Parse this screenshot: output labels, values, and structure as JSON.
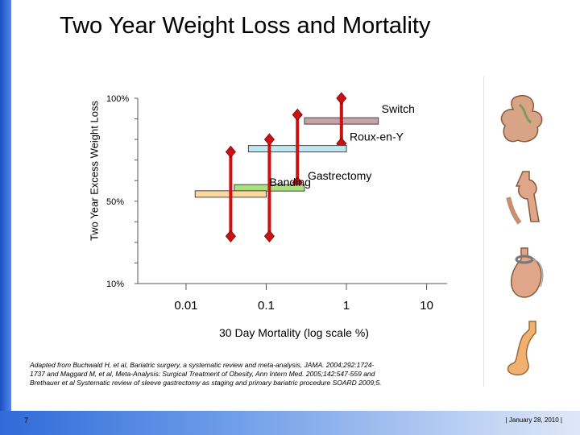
{
  "slide": {
    "title": "Two Year Weight Loss and Mortality",
    "number": "7",
    "footer": "| January 28, 2010 |",
    "citation": "Adapted from Buchwald H, et al, Bariatric surgery, a systematic review and meta-analysis, JAMA. 2004;292:1724-1737 and Maggard M, et al, Meta-Analysis: Surgical Treatment of Obesity, Ann Intern Med. 2005;142:547-559 and Brethauer et al Systematic review of sleeve gastrectomy as staging and primary bariatric procedure SOARD 2009;5."
  },
  "colors": {
    "left_bar": "#1c4fc4",
    "diamond": "#cc1111",
    "switch": "#c9a1aa",
    "roux": "#bfe9f2",
    "gastrectomy": "#a8e27a",
    "banding": "#ffd79a"
  },
  "chart_data": {
    "type": "range",
    "title": "",
    "xlabel": "30 Day Mortality (log scale %)",
    "ylabel": "Two Year Excess Weight Loss",
    "x_scale": "log",
    "xlim": [
      0.0025,
      18
    ],
    "ylim": [
      10,
      100
    ],
    "x_ticks": [
      "0.01",
      "0.1",
      "1",
      "10"
    ],
    "y_ticks": [
      "100%",
      "50%",
      "10%"
    ],
    "series": [
      {
        "name": "Switch",
        "color": "#c9a1aa",
        "mortality_range": [
          0.3,
          2.5
        ],
        "ewl_range": [
          78,
          100
        ]
      },
      {
        "name": "Roux-en-Y",
        "color": "#bfe9f2",
        "mortality_range": [
          0.06,
          1.0
        ],
        "ewl_range": [
          59,
          92
        ]
      },
      {
        "name": "Gastrectomy",
        "color": "#a8e27a",
        "mortality_range": [
          0.04,
          0.3
        ],
        "ewl_range": [
          33,
          80
        ]
      },
      {
        "name": "Banding",
        "color": "#ffd79a",
        "mortality_range": [
          0.013,
          0.1
        ],
        "ewl_range": [
          33,
          74
        ]
      }
    ]
  },
  "illustrations": [
    "switch-anatomy",
    "roux-en-y-anatomy",
    "banding-anatomy",
    "sleeve-gastrectomy-anatomy"
  ]
}
